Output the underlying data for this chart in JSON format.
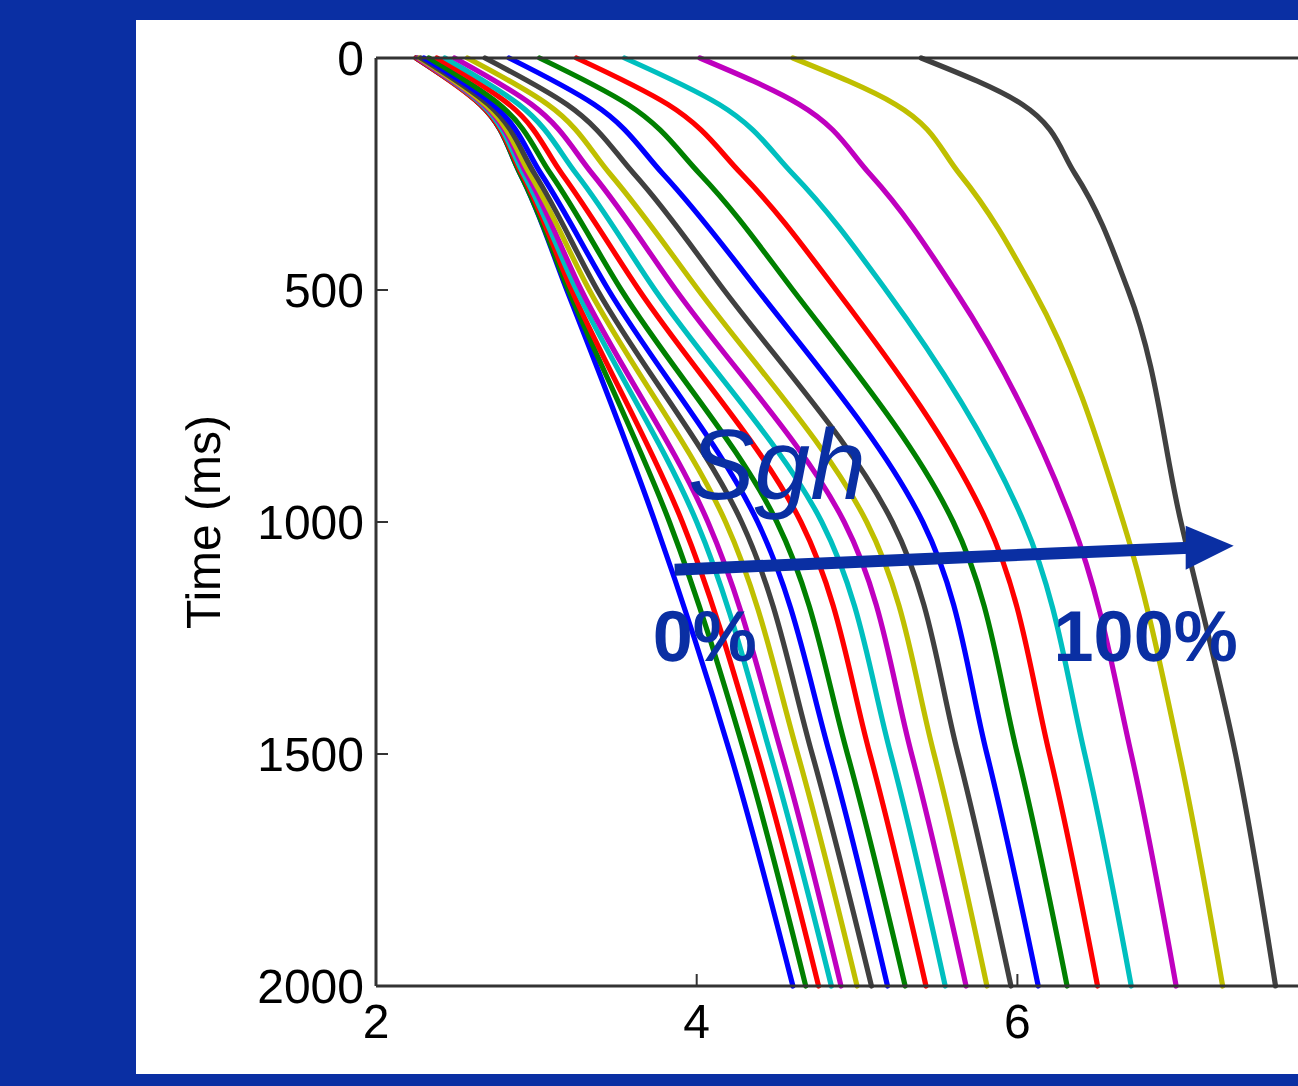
{
  "chart_data": {
    "type": "line",
    "ylabel": "Time (ms)",
    "xlim": [
      2,
      7.75
    ],
    "ylim": [
      2000,
      0
    ],
    "xticks": [
      2,
      4,
      6
    ],
    "yticks": [
      0,
      500,
      1000,
      1500,
      2000
    ],
    "line_style": "solid",
    "annotations": [
      {
        "text": "Sgh",
        "x": 4.5,
        "y": 875
      },
      {
        "text": "0%",
        "x": 4.05,
        "y": 1245
      },
      {
        "text": "100%",
        "x": 6.8,
        "y": 1245
      }
    ],
    "series": [
      {
        "color": "#0000ff",
        "x": [
          2.25,
          2.65,
          2.9,
          3.19,
          3.74,
          4.21,
          4.6
        ],
        "values": [
          0,
          100,
          250,
          500,
          1000,
          1500,
          2000
        ]
      },
      {
        "color": "#008000",
        "x": [
          2.25,
          2.65,
          2.9,
          3.2,
          3.83,
          4.3,
          4.68
        ],
        "values": [
          0,
          100,
          250,
          500,
          1000,
          1500,
          2000
        ]
      },
      {
        "color": "#ff0000",
        "x": [
          2.25,
          2.65,
          2.91,
          3.22,
          3.91,
          4.38,
          4.76
        ],
        "values": [
          0,
          100,
          250,
          500,
          1000,
          1500,
          2000
        ]
      },
      {
        "color": "#00bfbf",
        "x": [
          2.26,
          2.66,
          2.92,
          3.25,
          4.0,
          4.46,
          4.84
        ],
        "values": [
          0,
          100,
          250,
          500,
          1000,
          1500,
          2000
        ]
      },
      {
        "color": "#bf00bf",
        "x": [
          2.26,
          2.67,
          2.94,
          3.28,
          4.07,
          4.53,
          4.9
        ],
        "values": [
          0,
          100,
          250,
          500,
          1000,
          1500,
          2000
        ]
      },
      {
        "color": "#bfbf00",
        "x": [
          2.27,
          2.68,
          2.96,
          3.33,
          4.18,
          4.63,
          5.0
        ],
        "values": [
          0,
          100,
          250,
          500,
          1000,
          1500,
          2000
        ]
      },
      {
        "color": "#404040",
        "x": [
          2.28,
          2.7,
          2.99,
          3.38,
          4.28,
          4.72,
          5.09
        ],
        "values": [
          0,
          100,
          250,
          500,
          1000,
          1500,
          2000
        ]
      },
      {
        "color": "#0000ff",
        "x": [
          2.3,
          2.73,
          3.03,
          3.45,
          4.38,
          4.83,
          5.19
        ],
        "values": [
          0,
          100,
          250,
          500,
          1000,
          1500,
          2000
        ]
      },
      {
        "color": "#008000",
        "x": [
          2.33,
          2.77,
          3.09,
          3.53,
          4.5,
          4.94,
          5.3
        ],
        "values": [
          0,
          100,
          250,
          500,
          1000,
          1500,
          2000
        ]
      },
      {
        "color": "#ff0000",
        "x": [
          2.38,
          2.83,
          3.16,
          3.64,
          4.65,
          5.08,
          5.43
        ],
        "values": [
          0,
          100,
          250,
          500,
          1000,
          1500,
          2000
        ]
      },
      {
        "color": "#00bfbf",
        "x": [
          2.43,
          2.89,
          3.25,
          3.74,
          4.78,
          5.21,
          5.55
        ],
        "values": [
          0,
          100,
          250,
          500,
          1000,
          1500,
          2000
        ]
      },
      {
        "color": "#bf00bf",
        "x": [
          2.49,
          2.97,
          3.35,
          3.87,
          4.92,
          5.34,
          5.68
        ],
        "values": [
          0,
          100,
          250,
          500,
          1000,
          1500,
          2000
        ]
      },
      {
        "color": "#bfbf00",
        "x": [
          2.57,
          3.07,
          3.46,
          4.01,
          5.06,
          5.48,
          5.81
        ],
        "values": [
          0,
          100,
          250,
          500,
          1000,
          1500,
          2000
        ]
      },
      {
        "color": "#404040",
        "x": [
          2.68,
          3.19,
          3.61,
          4.17,
          5.22,
          5.63,
          5.96
        ],
        "values": [
          0,
          100,
          250,
          500,
          1000,
          1500,
          2000
        ]
      },
      {
        "color": "#0000ff",
        "x": [
          2.83,
          3.36,
          3.79,
          4.38,
          5.41,
          5.81,
          6.13
        ],
        "values": [
          0,
          100,
          250,
          500,
          1000,
          1500,
          2000
        ]
      },
      {
        "color": "#008000",
        "x": [
          3.02,
          3.57,
          4.02,
          4.6,
          5.6,
          6.0,
          6.31
        ],
        "values": [
          0,
          100,
          250,
          500,
          1000,
          1500,
          2000
        ]
      },
      {
        "color": "#ff0000",
        "x": [
          3.25,
          3.82,
          4.28,
          4.87,
          5.81,
          6.2,
          6.5
        ],
        "values": [
          0,
          100,
          250,
          500,
          1000,
          1500,
          2000
        ]
      },
      {
        "color": "#00bfbf",
        "x": [
          3.55,
          4.14,
          4.6,
          5.18,
          6.04,
          6.42,
          6.71
        ],
        "values": [
          0,
          100,
          250,
          500,
          1000,
          1500,
          2000
        ]
      },
      {
        "color": "#bf00bf",
        "x": [
          4.02,
          4.64,
          5.08,
          5.61,
          6.34,
          6.71,
          6.99
        ],
        "values": [
          0,
          100,
          250,
          500,
          1000,
          1500,
          2000
        ]
      },
      {
        "color": "#bfbf00",
        "x": [
          4.6,
          5.24,
          5.64,
          6.1,
          6.66,
          7.01,
          7.28
        ],
        "values": [
          0,
          100,
          250,
          500,
          1000,
          1500,
          2000
        ]
      },
      {
        "color": "#404040",
        "x": [
          5.4,
          6.03,
          6.36,
          6.69,
          7.02,
          7.36,
          7.61
        ],
        "values": [
          0,
          100,
          250,
          500,
          1000,
          1500,
          2000
        ]
      }
    ]
  }
}
